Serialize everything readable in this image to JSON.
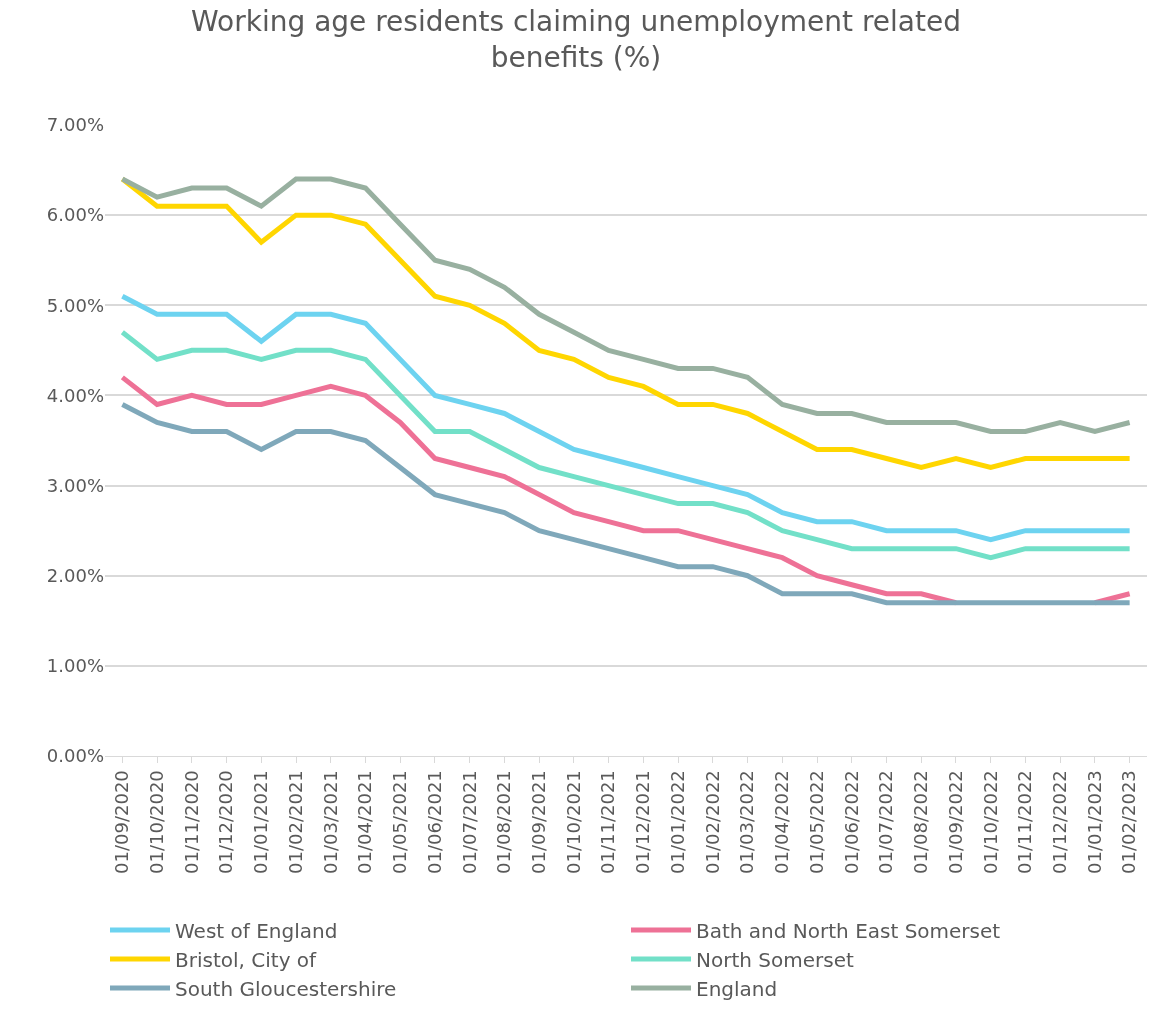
{
  "chart_data": {
    "type": "line",
    "title": "Working age residents claiming unemployment related benefits (%)",
    "categories": [
      "01/09/2020",
      "01/10/2020",
      "01/11/2020",
      "01/12/2020",
      "01/01/2021",
      "01/02/2021",
      "01/03/2021",
      "01/04/2021",
      "01/05/2021",
      "01/06/2021",
      "01/07/2021",
      "01/08/2021",
      "01/09/2021",
      "01/10/2021",
      "01/11/2021",
      "01/12/2021",
      "01/01/2022",
      "01/02/2022",
      "01/03/2022",
      "01/04/2022",
      "01/05/2022",
      "01/06/2022",
      "01/07/2022",
      "01/08/2022",
      "01/09/2022",
      "01/10/2022",
      "01/11/2022",
      "01/12/2022",
      "01/01/2023",
      "01/02/2023"
    ],
    "series": [
      {
        "name": "West of England",
        "color": "#6dd3f0",
        "values": [
          5.1,
          4.9,
          4.9,
          4.9,
          4.6,
          4.9,
          4.9,
          4.8,
          4.4,
          4.0,
          3.9,
          3.8,
          3.6,
          3.4,
          3.3,
          3.2,
          3.1,
          3.0,
          2.9,
          2.7,
          2.6,
          2.6,
          2.5,
          2.5,
          2.5,
          2.4,
          2.5,
          2.5,
          2.5,
          2.5
        ]
      },
      {
        "name": "Bath and North East Somerset",
        "color": "#ee7196",
        "values": [
          4.2,
          3.9,
          4.0,
          3.9,
          3.9,
          4.0,
          4.1,
          4.0,
          3.7,
          3.3,
          3.2,
          3.1,
          2.9,
          2.7,
          2.6,
          2.5,
          2.5,
          2.4,
          2.3,
          2.2,
          2.0,
          1.9,
          1.8,
          1.8,
          1.7,
          null,
          null,
          null,
          1.7,
          1.8
        ]
      },
      {
        "name": "Bristol, City of",
        "color": "#ffd600",
        "values": [
          6.4,
          6.1,
          6.1,
          6.1,
          5.7,
          6.0,
          6.0,
          5.9,
          5.5,
          5.1,
          5.0,
          4.8,
          4.5,
          4.4,
          4.2,
          4.1,
          3.9,
          3.9,
          3.8,
          3.6,
          3.4,
          3.4,
          3.3,
          3.2,
          3.3,
          3.2,
          3.3,
          3.3,
          3.3,
          3.3
        ]
      },
      {
        "name": "North Somerset",
        "color": "#72e0c8",
        "values": [
          4.7,
          4.4,
          4.5,
          4.5,
          4.4,
          4.5,
          4.5,
          4.4,
          4.0,
          3.6,
          3.6,
          3.4,
          3.2,
          3.1,
          3.0,
          2.9,
          2.8,
          2.8,
          2.7,
          2.5,
          2.4,
          2.3,
          2.3,
          2.3,
          2.3,
          2.2,
          2.3,
          2.3,
          2.3,
          2.3
        ]
      },
      {
        "name": "South Gloucestershire",
        "color": "#7fa8ba",
        "values": [
          3.9,
          3.7,
          3.6,
          3.6,
          3.4,
          3.6,
          3.6,
          3.5,
          3.2,
          2.9,
          2.8,
          2.7,
          2.5,
          2.4,
          2.3,
          2.2,
          2.1,
          2.1,
          2.0,
          1.8,
          1.8,
          1.8,
          1.7,
          1.7,
          1.7,
          1.7,
          1.7,
          1.7,
          1.7,
          1.7
        ]
      },
      {
        "name": "England",
        "color": "#98b0a0",
        "values": [
          6.4,
          6.2,
          6.3,
          6.3,
          6.1,
          6.4,
          6.4,
          6.3,
          5.9,
          5.5,
          5.4,
          5.2,
          4.9,
          4.7,
          4.5,
          4.4,
          4.3,
          4.3,
          4.2,
          3.9,
          3.8,
          3.8,
          3.7,
          3.7,
          3.7,
          3.6,
          3.6,
          3.7,
          3.6,
          3.7
        ]
      }
    ],
    "ylim": [
      0,
      7
    ],
    "yticks": [
      {
        "value": 0,
        "label": "0.00%"
      },
      {
        "value": 1,
        "label": "1.00%"
      },
      {
        "value": 2,
        "label": "2.00%"
      },
      {
        "value": 3,
        "label": "3.00%"
      },
      {
        "value": 4,
        "label": "4.00%"
      },
      {
        "value": 5,
        "label": "5.00%"
      },
      {
        "value": 6,
        "label": "6.00%"
      },
      {
        "value": 7,
        "label": "7.00%"
      }
    ],
    "grid": "y",
    "legend": "bottom",
    "marker": "none",
    "line_style": "solid"
  }
}
